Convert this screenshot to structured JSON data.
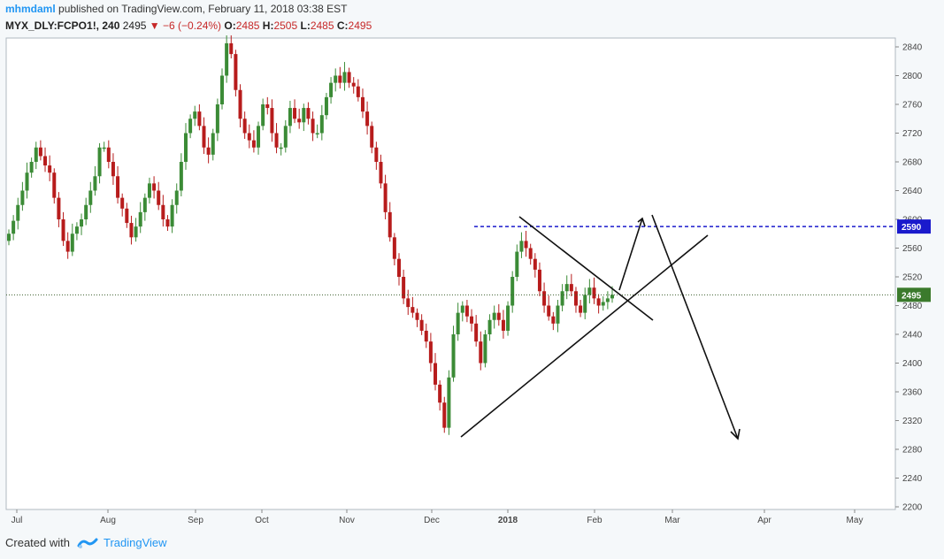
{
  "header": {
    "username": "mhmdaml",
    "published_text": "published on TradingView.com, February 11, 2018 03:38 EST",
    "symbol": "MYX_DLY:FCPO1!, 240",
    "last": "2495",
    "change": "−6 (−0.24%)",
    "o_label": "O:",
    "o_value": "2485",
    "h_label": "H:",
    "h_value": "2505",
    "l_label": "L:",
    "l_value": "2485",
    "c_label": "C:",
    "c_value": "2495"
  },
  "footer": {
    "created_with": "Created with",
    "brand": "TradingView"
  },
  "colors": {
    "up": "#3b8b36",
    "down": "#b71c1c",
    "accent": "#2196f3",
    "dashed": "#1a1acc",
    "price_badge": "#3b7a2c",
    "level_badge": "#1a1acc"
  },
  "chart_data": {
    "type": "candlestick",
    "symbol": "MYX_DLY:FCPO1!",
    "timeframe": "240",
    "ylim": [
      2200,
      2850
    ],
    "y_ticks": [
      "2840",
      "2800",
      "2760",
      "2720",
      "2680",
      "2640",
      "2600",
      "2560",
      "2520",
      "2480",
      "2440",
      "2400",
      "2360",
      "2320",
      "2280",
      "2240",
      "2200"
    ],
    "x_ticks": [
      "Jul",
      "Aug",
      "Sep",
      "Oct",
      "Nov",
      "Dec",
      "2018",
      "Feb",
      "Mar",
      "Apr",
      "May"
    ],
    "price_line": {
      "value": 2495,
      "label": "2495"
    },
    "level_line": {
      "value": 2590,
      "label": "2590"
    },
    "series": [
      {
        "name": "price",
        "values": [
          2580,
          2598,
          2620,
          2640,
          2665,
          2680,
          2700,
          2688,
          2675,
          2665,
          2630,
          2600,
          2570,
          2555,
          2580,
          2590,
          2600,
          2620,
          2640,
          2660,
          2700,
          2700,
          2680,
          2660,
          2630,
          2615,
          2595,
          2575,
          2590,
          2610,
          2630,
          2650,
          2640,
          2620,
          2600,
          2590,
          2620,
          2640,
          2680,
          2720,
          2740,
          2750,
          2730,
          2700,
          2690,
          2720,
          2760,
          2800,
          2845,
          2830,
          2780,
          2740,
          2720,
          2710,
          2700,
          2730,
          2760,
          2755,
          2720,
          2700,
          2700,
          2730,
          2755,
          2740,
          2735,
          2755,
          2740,
          2720,
          2720,
          2745,
          2770,
          2790,
          2800,
          2790,
          2805,
          2790,
          2785,
          2770,
          2750,
          2730,
          2700,
          2680,
          2650,
          2610,
          2575,
          2545,
          2520,
          2490,
          2478,
          2470,
          2460,
          2445,
          2430,
          2400,
          2370,
          2345,
          2310,
          2380,
          2440,
          2470,
          2480,
          2465,
          2455,
          2430,
          2400,
          2440,
          2460,
          2470,
          2460,
          2445,
          2480,
          2520,
          2555,
          2570,
          2560,
          2545,
          2530,
          2500,
          2480,
          2465,
          2455,
          2480,
          2500,
          2510,
          2500,
          2480,
          2470,
          2495,
          2505,
          2490,
          2480,
          2485,
          2490,
          2495
        ]
      }
    ]
  }
}
